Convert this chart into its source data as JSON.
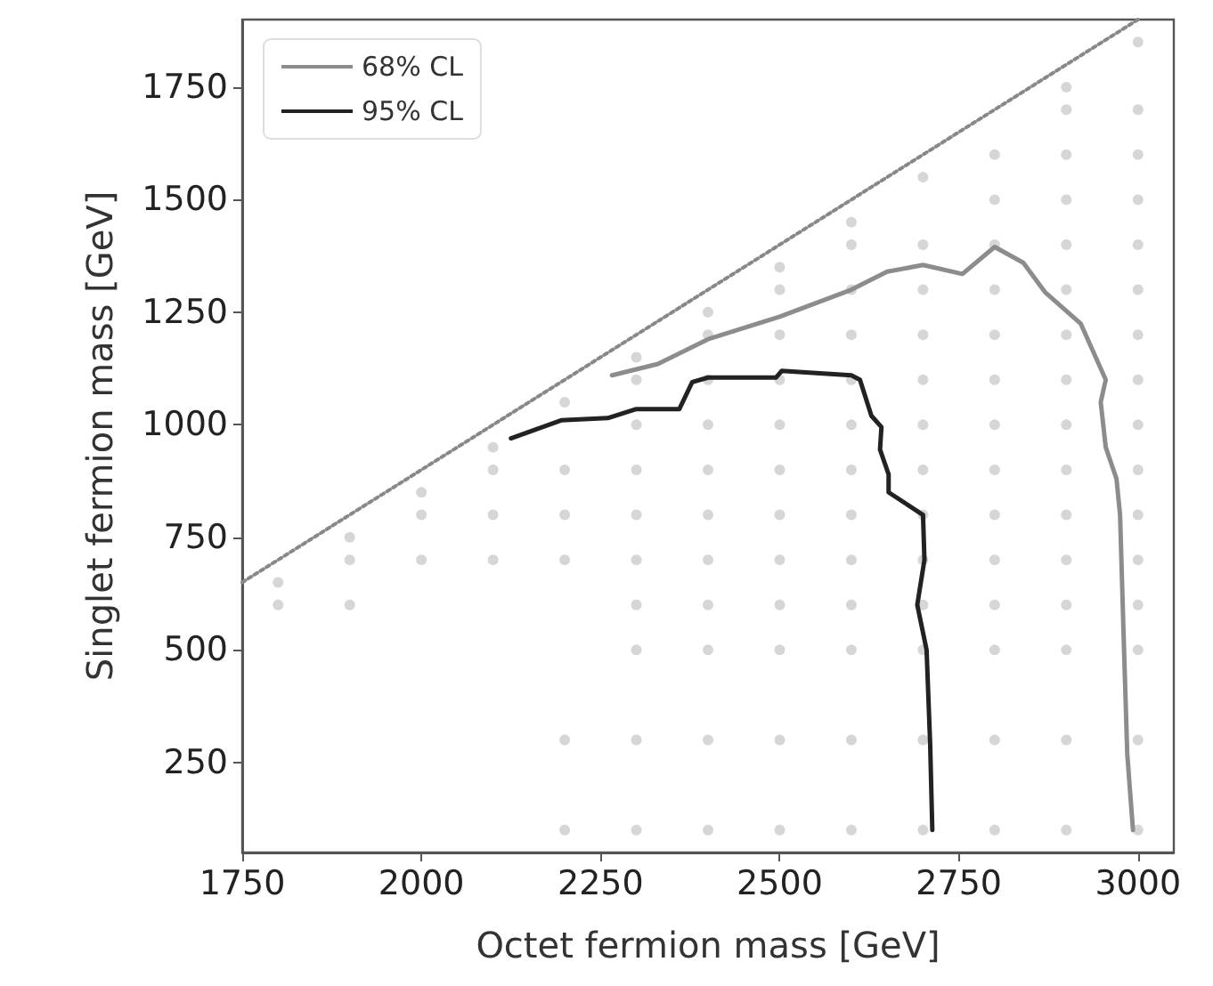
{
  "chart_data": {
    "type": "line",
    "xlabel": "Octet fermion mass [GeV]",
    "ylabel": "Singlet fermion mass [GeV]",
    "xlim": [
      1750,
      3050
    ],
    "xticks": [
      1750,
      2000,
      2250,
      2500,
      2750,
      3000
    ],
    "ylim": [
      50,
      1900
    ],
    "yticks": [
      250,
      500,
      750,
      1000,
      1250,
      1500,
      1750
    ],
    "grid": false,
    "legend": "top left",
    "marker": "none",
    "series": [
      {
        "type": "scatter",
        "marker": "circle",
        "color": "#cccccc",
        "x": [
          1800,
          1800,
          1900,
          1900,
          1900,
          2000,
          2000,
          2000,
          2100,
          2100,
          2100,
          2100,
          2200,
          2200,
          2200,
          2200,
          2200,
          2200,
          2300,
          2300,
          2300,
          2300,
          2300,
          2300,
          2300,
          2300,
          2300,
          2300,
          2400,
          2400,
          2400,
          2400,
          2400,
          2400,
          2400,
          2400,
          2400,
          2400,
          2400,
          2500,
          2500,
          2500,
          2500,
          2500,
          2500,
          2500,
          2500,
          2500,
          2500,
          2500,
          2500,
          2600,
          2600,
          2600,
          2600,
          2600,
          2600,
          2600,
          2600,
          2600,
          2600,
          2600,
          2600,
          2600,
          2700,
          2700,
          2700,
          2700,
          2700,
          2700,
          2700,
          2700,
          2700,
          2700,
          2700,
          2700,
          2700,
          2800,
          2800,
          2800,
          2800,
          2800,
          2800,
          2800,
          2800,
          2800,
          2800,
          2800,
          2800,
          2800,
          2800,
          2900,
          2900,
          2900,
          2900,
          2900,
          2900,
          2900,
          2900,
          2900,
          2900,
          2900,
          2900,
          2900,
          2900,
          2900,
          2900,
          3000,
          3000,
          3000,
          3000,
          3000,
          3000,
          3000,
          3000,
          3000,
          3000,
          3000,
          3000,
          3000,
          3000,
          3000,
          3000
        ],
        "values": [
          600,
          650,
          600,
          700,
          750,
          700,
          800,
          850,
          700,
          800,
          900,
          950,
          100,
          300,
          700,
          800,
          900,
          1050,
          100,
          300,
          500,
          600,
          700,
          800,
          900,
          1000,
          1100,
          1150,
          100,
          300,
          500,
          600,
          700,
          800,
          900,
          1000,
          1100,
          1200,
          1250,
          100,
          300,
          500,
          600,
          700,
          800,
          900,
          1000,
          1100,
          1200,
          1300,
          1350,
          100,
          300,
          500,
          600,
          700,
          800,
          900,
          1000,
          1100,
          1200,
          1300,
          1400,
          1450,
          100,
          300,
          500,
          600,
          700,
          800,
          900,
          1000,
          1100,
          1200,
          1300,
          1400,
          1550,
          100,
          300,
          500,
          600,
          700,
          800,
          900,
          1000,
          1100,
          1200,
          1300,
          1400,
          1500,
          1600,
          100,
          300,
          500,
          600,
          700,
          800,
          900,
          1000,
          1100,
          1200,
          1300,
          1400,
          1500,
          1600,
          1700,
          1750,
          100,
          300,
          500,
          600,
          700,
          800,
          900,
          1000,
          1100,
          1200,
          1300,
          1400,
          1500,
          1600,
          1700,
          1850
        ]
      },
      {
        "type": "line",
        "line_style": "dotted",
        "color": "#888888",
        "x": [
          1750,
          3000
        ],
        "values": [
          650,
          1900
        ]
      },
      {
        "name": "68% CL",
        "color": "#8c8c8c",
        "x": [
          2266,
          2330,
          2400,
          2500,
          2600,
          2650,
          2700,
          2755,
          2800,
          2840,
          2870,
          2920,
          2955,
          2948,
          2955,
          2970,
          2975,
          2980,
          2985,
          2993
        ],
        "values": [
          1110,
          1135,
          1190,
          1240,
          1300,
          1340,
          1355,
          1335,
          1395,
          1360,
          1295,
          1225,
          1100,
          1050,
          950,
          880,
          800,
          530,
          270,
          100
        ]
      },
      {
        "name": "95% CL",
        "color": "#222222",
        "x": [
          2125,
          2195,
          2260,
          2300,
          2360,
          2378,
          2400,
          2495,
          2503,
          2600,
          2612,
          2628,
          2642,
          2640,
          2652,
          2652,
          2700,
          2702,
          2692,
          2705,
          2710,
          2713
        ],
        "values": [
          970,
          1010,
          1015,
          1035,
          1035,
          1095,
          1105,
          1105,
          1120,
          1110,
          1100,
          1020,
          995,
          945,
          890,
          850,
          800,
          700,
          600,
          500,
          290,
          100
        ]
      }
    ]
  }
}
